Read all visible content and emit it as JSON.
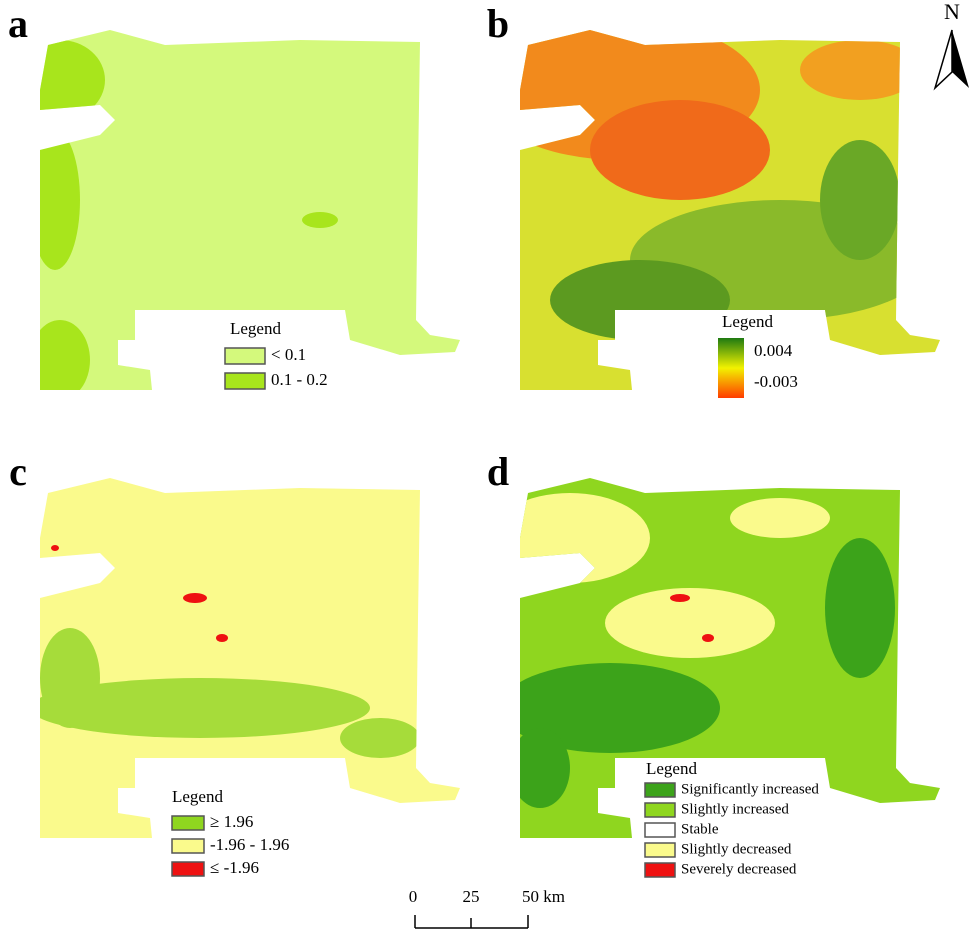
{
  "panels": [
    {
      "label": "a",
      "legend": {
        "title": "Legend",
        "items": [
          {
            "label": "< 0.1",
            "color": "#d4f97c"
          },
          {
            "label": "0.1 - 0.2",
            "color": "#a8e51c"
          }
        ]
      }
    },
    {
      "label": "b",
      "legend": {
        "title": "Legend",
        "gradient": [
          "#1e7a12",
          "#f2f200",
          "#ff3c00"
        ],
        "max_label": "0.004",
        "min_label": "-0.003"
      }
    },
    {
      "label": "c",
      "legend": {
        "title": "Legend",
        "items": [
          {
            "label": "≥ 1.96",
            "color": "#8fd61f"
          },
          {
            "label": "-1.96 - 1.96",
            "color": "#fafa8c"
          },
          {
            "label": "≤ -1.96",
            "color": "#ee1111"
          }
        ]
      }
    },
    {
      "label": "d",
      "legend": {
        "title": "Legend",
        "items": [
          {
            "label": "Significantly increased",
            "color": "#3ca31a"
          },
          {
            "label": "Slightly increased",
            "color": "#8fd61f"
          },
          {
            "label": "Stable",
            "color": "#ffffff"
          },
          {
            "label": "Slightly decreased",
            "color": "#fafa8c"
          },
          {
            "label": "Severely decreased",
            "color": "#ee1111"
          }
        ]
      }
    }
  ],
  "north_arrow": {
    "label": "N"
  },
  "scale_bar": {
    "ticks": [
      "0",
      "25",
      "50 km"
    ]
  }
}
